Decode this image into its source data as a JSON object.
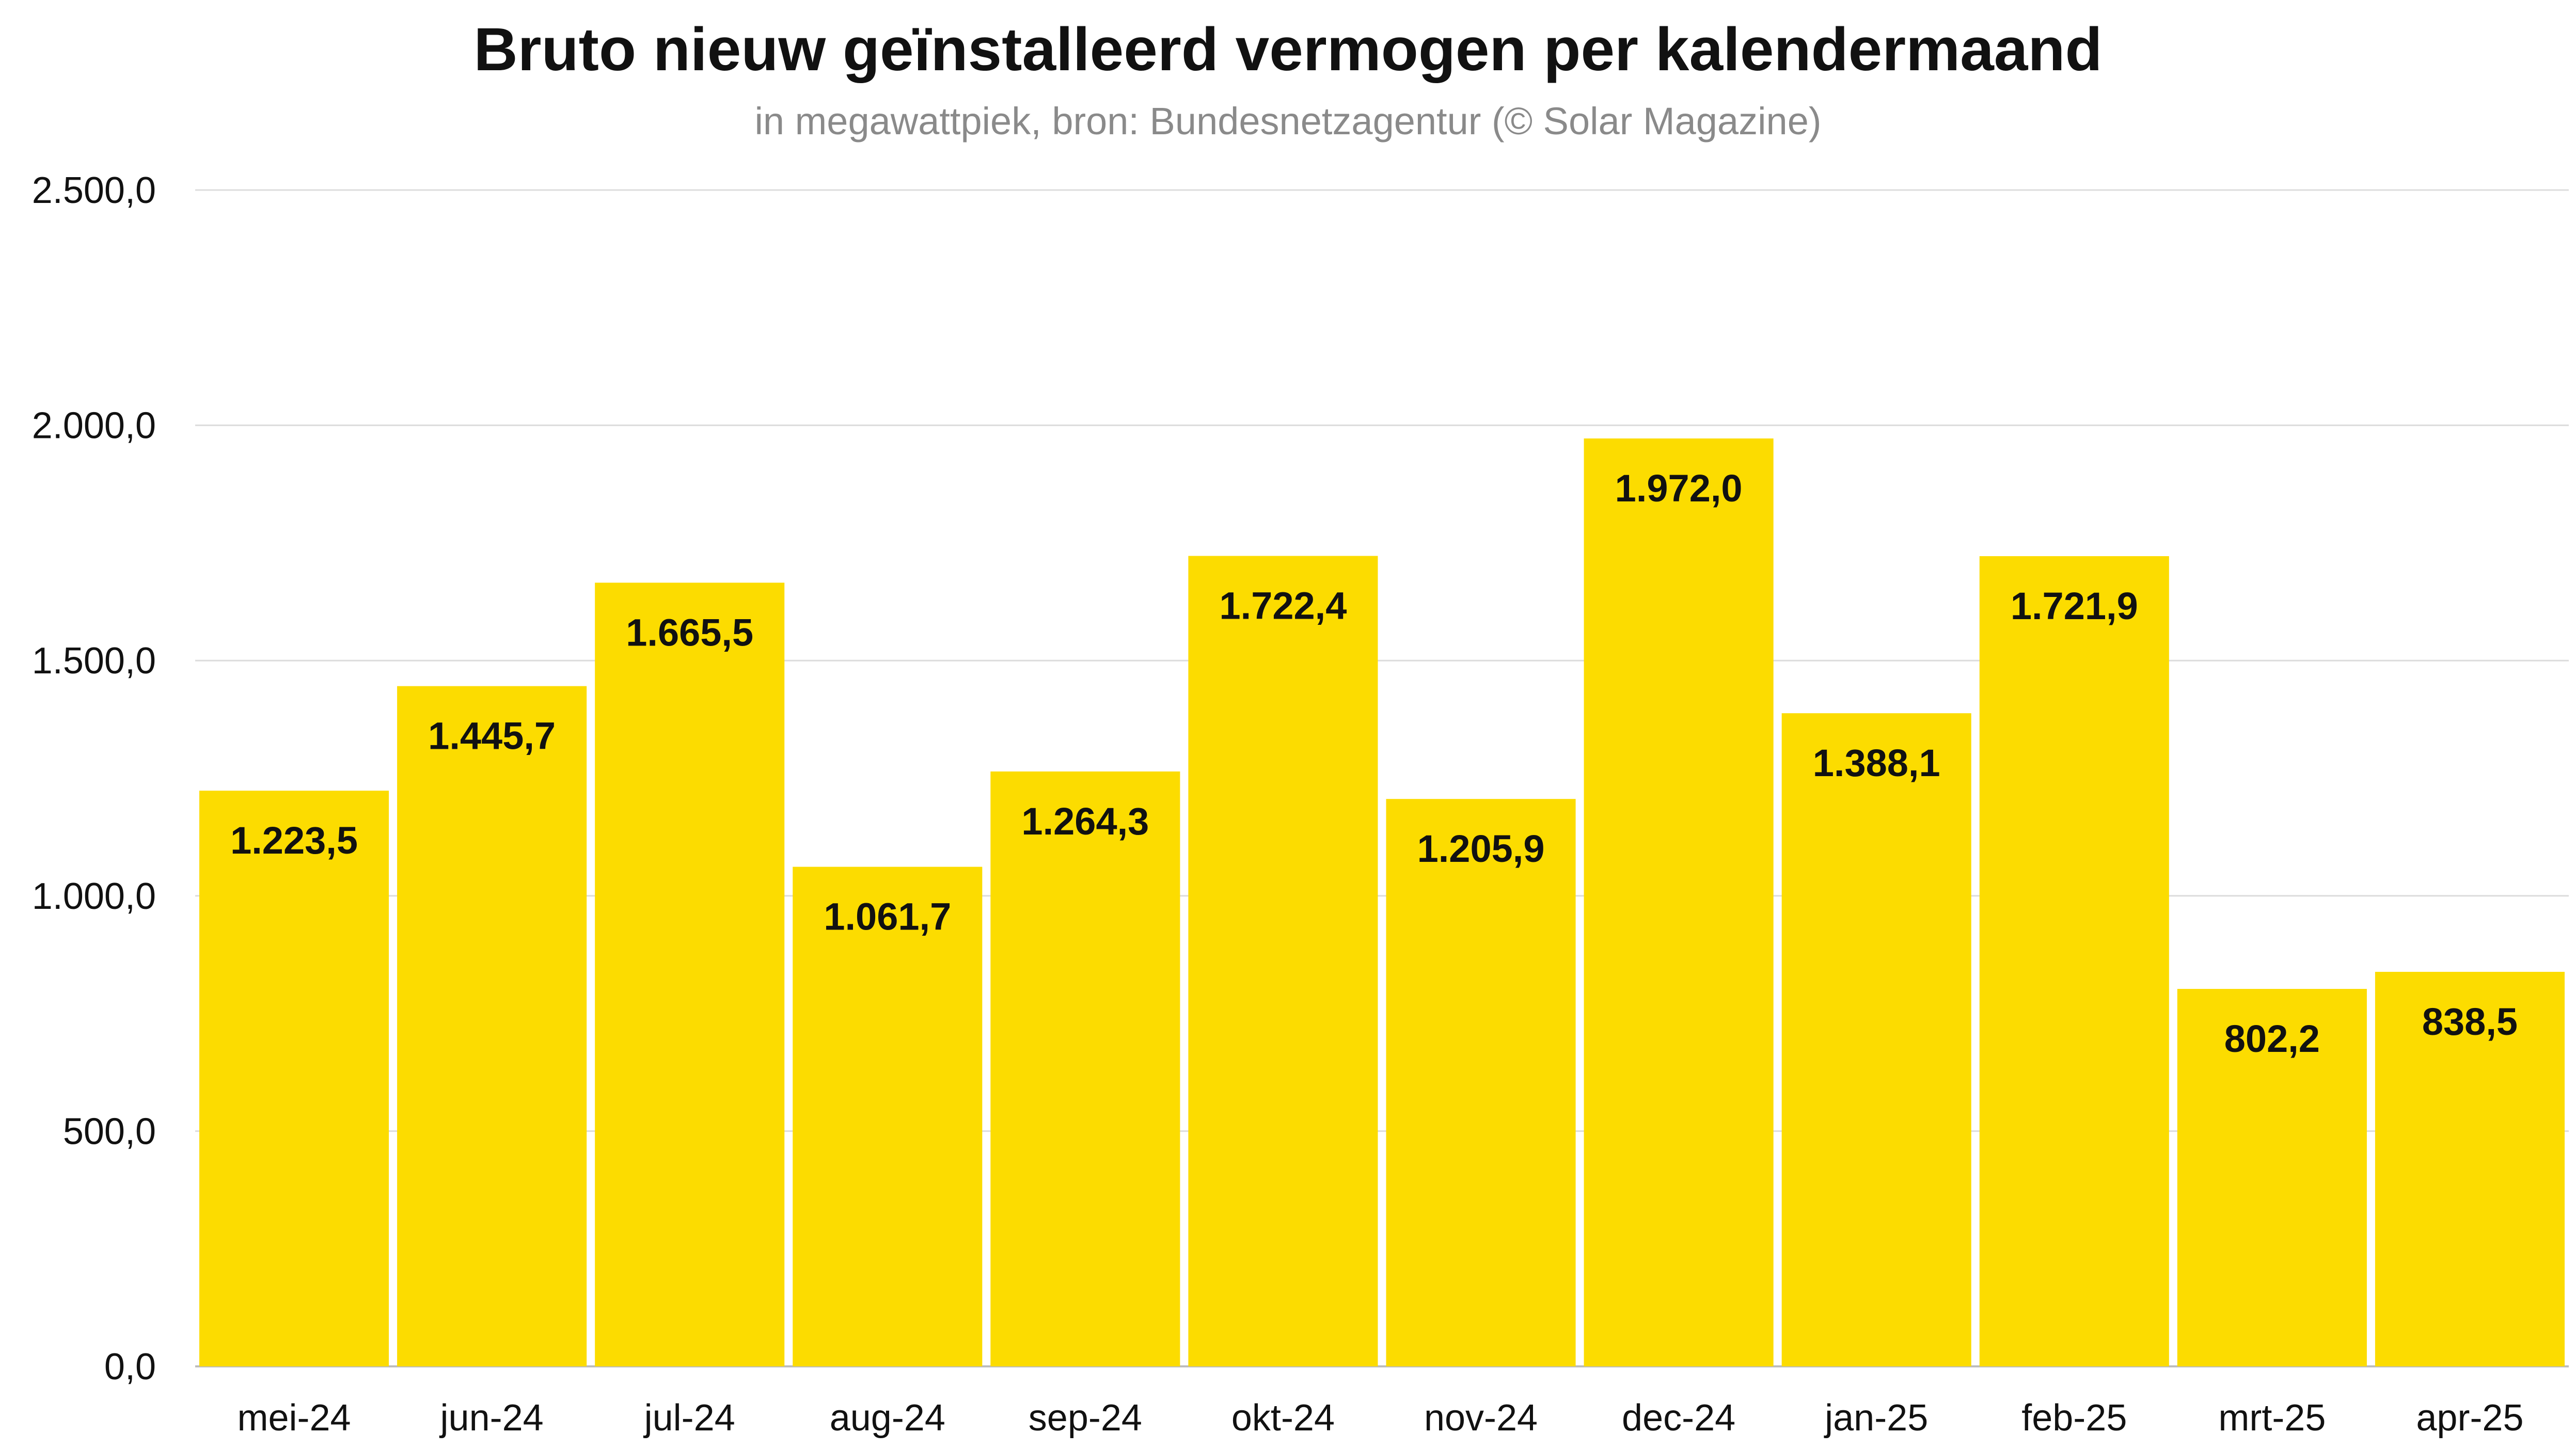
{
  "chart_data": {
    "type": "bar",
    "title": "Bruto nieuw geïnstalleerd vermogen per kalendermaand",
    "subtitle": "in megawattpiek, bron: Bundesnetzagentur (© Solar Magazine)",
    "categories": [
      "mei-24",
      "jun-24",
      "jul-24",
      "aug-24",
      "sep-24",
      "okt-24",
      "nov-24",
      "dec-24",
      "jan-25",
      "feb-25",
      "mrt-25",
      "apr-25"
    ],
    "values": [
      1223.5,
      1445.7,
      1665.5,
      1061.7,
      1264.3,
      1722.4,
      1205.9,
      1972.0,
      1388.1,
      1721.9,
      802.2,
      838.5
    ],
    "data_labels": [
      "1.223,5",
      "1.445,7",
      "1.665,5",
      "1.061,7",
      "1.264,3",
      "1.722,4",
      "1.205,9",
      "1.972,0",
      "1.388,1",
      "1.721,9",
      "802,2",
      "838,5"
    ],
    "y_ticks": [
      0,
      500,
      1000,
      1500,
      2000,
      2500
    ],
    "y_tick_labels": [
      "0,0",
      "500,0",
      "1.000,0",
      "1.500,0",
      "2.000,0",
      "2.500,0"
    ],
    "xlabel": "",
    "ylabel": "",
    "ylim": [
      0,
      2500
    ],
    "grid": true,
    "legend": "none",
    "colors": {
      "bar": "#FCDC00",
      "grid": "#DCDCDC",
      "text": "#111111",
      "subtitle": "#8A8A8A"
    }
  }
}
